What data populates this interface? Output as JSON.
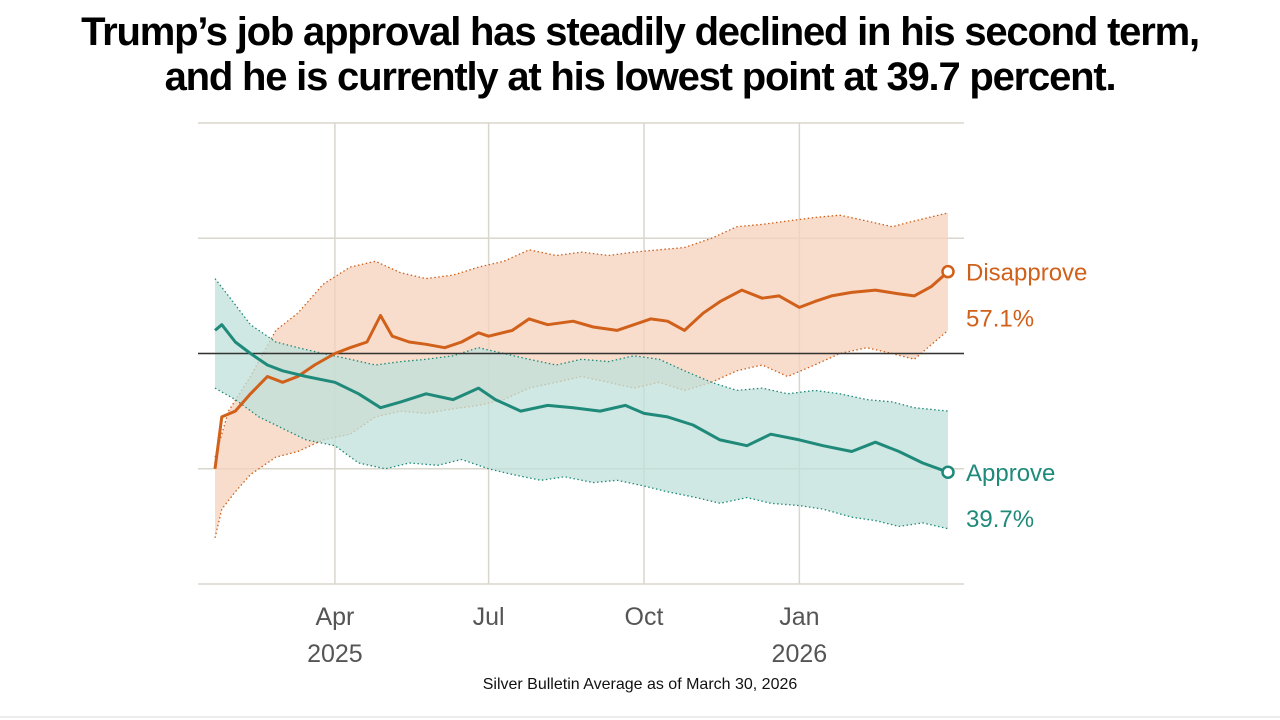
{
  "headline": {
    "line1": "Trump’s job approval has steadily declined in his second term,",
    "line2": "and he is currently at his lowest point at 39.7 percent."
  },
  "source": "Silver Bulletin Average as of March 30, 2026",
  "colors": {
    "disapprove": "#d0601a",
    "disapprove_band": "#f6d2bc",
    "approve": "#1f8a7a",
    "approve_band": "#bfe0d9",
    "grid": "#d9d6cc",
    "reference": "#333333"
  },
  "chart_data": {
    "type": "line",
    "x_axis": {
      "type": "date",
      "range": [
        "2025-01-20",
        "2026-03-30"
      ],
      "ticks": [
        {
          "date": "2025-04-01",
          "line1": "Apr",
          "line2": "2025"
        },
        {
          "date": "2025-07-01",
          "line1": "Jul",
          "line2": ""
        },
        {
          "date": "2025-10-01",
          "line1": "Oct",
          "line2": ""
        },
        {
          "date": "2026-01-01",
          "line1": "Jan",
          "line2": "2026"
        }
      ]
    },
    "y_axis": {
      "range": [
        30,
        70
      ],
      "gridlines": [
        30,
        40,
        50,
        60,
        70
      ],
      "reference_line": 50,
      "tick_labels_shown": false
    },
    "grid": true,
    "series": [
      {
        "name": "Disapprove",
        "end_label": "57.1%",
        "band_style": "dotted",
        "points": [
          [
            "2025-01-20",
            40.0
          ],
          [
            "2025-01-24",
            44.5
          ],
          [
            "2025-02-01",
            45.0
          ],
          [
            "2025-02-10",
            46.5
          ],
          [
            "2025-02-20",
            48.0
          ],
          [
            "2025-03-01",
            47.5
          ],
          [
            "2025-03-10",
            48.0
          ],
          [
            "2025-03-20",
            49.0
          ],
          [
            "2025-04-01",
            50.0
          ],
          [
            "2025-04-10",
            50.5
          ],
          [
            "2025-04-20",
            51.0
          ],
          [
            "2025-04-28",
            53.3
          ],
          [
            "2025-05-05",
            51.5
          ],
          [
            "2025-05-15",
            51.0
          ],
          [
            "2025-05-25",
            50.8
          ],
          [
            "2025-06-05",
            50.5
          ],
          [
            "2025-06-15",
            51.0
          ],
          [
            "2025-06-25",
            51.8
          ],
          [
            "2025-07-01",
            51.5
          ],
          [
            "2025-07-15",
            52.0
          ],
          [
            "2025-07-25",
            53.0
          ],
          [
            "2025-08-05",
            52.5
          ],
          [
            "2025-08-20",
            52.8
          ],
          [
            "2025-09-01",
            52.3
          ],
          [
            "2025-09-15",
            52.0
          ],
          [
            "2025-09-25",
            52.5
          ],
          [
            "2025-10-05",
            53.0
          ],
          [
            "2025-10-15",
            52.8
          ],
          [
            "2025-10-25",
            52.0
          ],
          [
            "2025-11-05",
            53.5
          ],
          [
            "2025-11-15",
            54.5
          ],
          [
            "2025-11-28",
            55.5
          ],
          [
            "2025-12-10",
            54.8
          ],
          [
            "2025-12-20",
            55.0
          ],
          [
            "2026-01-01",
            54.0
          ],
          [
            "2026-01-10",
            54.5
          ],
          [
            "2026-01-20",
            55.0
          ],
          [
            "2026-02-01",
            55.3
          ],
          [
            "2026-02-15",
            55.5
          ],
          [
            "2026-02-28",
            55.2
          ],
          [
            "2026-03-10",
            55.0
          ],
          [
            "2026-03-20",
            55.8
          ],
          [
            "2026-03-30",
            57.1
          ]
        ],
        "upper": [
          [
            "2025-01-20",
            41.0
          ],
          [
            "2025-01-28",
            45.0
          ],
          [
            "2025-02-10",
            48.0
          ],
          [
            "2025-02-25",
            52.0
          ],
          [
            "2025-03-10",
            53.5
          ],
          [
            "2025-03-25",
            56.0
          ],
          [
            "2025-04-10",
            57.5
          ],
          [
            "2025-04-25",
            58.0
          ],
          [
            "2025-05-10",
            57.0
          ],
          [
            "2025-05-25",
            56.5
          ],
          [
            "2025-06-10",
            56.8
          ],
          [
            "2025-06-25",
            57.5
          ],
          [
            "2025-07-10",
            58.0
          ],
          [
            "2025-07-25",
            59.0
          ],
          [
            "2025-08-10",
            58.5
          ],
          [
            "2025-08-25",
            58.8
          ],
          [
            "2025-09-10",
            58.5
          ],
          [
            "2025-09-25",
            58.8
          ],
          [
            "2025-10-10",
            59.0
          ],
          [
            "2025-10-25",
            59.2
          ],
          [
            "2025-11-10",
            60.0
          ],
          [
            "2025-11-25",
            61.0
          ],
          [
            "2025-12-10",
            61.2
          ],
          [
            "2025-12-25",
            61.5
          ],
          [
            "2026-01-10",
            61.8
          ],
          [
            "2026-01-25",
            62.0
          ],
          [
            "2026-02-10",
            61.5
          ],
          [
            "2026-02-25",
            61.0
          ],
          [
            "2026-03-10",
            61.5
          ],
          [
            "2026-03-30",
            62.2
          ]
        ],
        "lower": [
          [
            "2025-01-20",
            34.0
          ],
          [
            "2025-01-24",
            36.5
          ],
          [
            "2025-02-01",
            38.0
          ],
          [
            "2025-02-10",
            39.5
          ],
          [
            "2025-02-25",
            41.0
          ],
          [
            "2025-03-10",
            41.5
          ],
          [
            "2025-03-25",
            42.5
          ],
          [
            "2025-04-10",
            43.0
          ],
          [
            "2025-04-25",
            44.5
          ],
          [
            "2025-05-10",
            45.0
          ],
          [
            "2025-05-25",
            44.8
          ],
          [
            "2025-06-10",
            45.2
          ],
          [
            "2025-06-25",
            45.5
          ],
          [
            "2025-07-10",
            46.0
          ],
          [
            "2025-07-25",
            47.0
          ],
          [
            "2025-08-10",
            47.5
          ],
          [
            "2025-08-25",
            48.0
          ],
          [
            "2025-09-10",
            47.5
          ],
          [
            "2025-09-25",
            47.0
          ],
          [
            "2025-10-10",
            47.5
          ],
          [
            "2025-10-25",
            46.8
          ],
          [
            "2025-11-10",
            47.5
          ],
          [
            "2025-11-25",
            48.5
          ],
          [
            "2025-12-10",
            49.0
          ],
          [
            "2025-12-25",
            48.0
          ],
          [
            "2026-01-10",
            49.0
          ],
          [
            "2026-01-25",
            50.0
          ],
          [
            "2026-02-10",
            50.5
          ],
          [
            "2026-02-25",
            50.0
          ],
          [
            "2026-03-10",
            49.5
          ],
          [
            "2026-03-30",
            52.0
          ]
        ]
      },
      {
        "name": "Approve",
        "end_label": "39.7%",
        "band_style": "dotted",
        "points": [
          [
            "2025-01-20",
            52.0
          ],
          [
            "2025-01-24",
            52.5
          ],
          [
            "2025-02-01",
            51.0
          ],
          [
            "2025-02-10",
            50.0
          ],
          [
            "2025-02-20",
            49.0
          ],
          [
            "2025-03-01",
            48.5
          ],
          [
            "2025-03-15",
            48.0
          ],
          [
            "2025-04-01",
            47.5
          ],
          [
            "2025-04-15",
            46.5
          ],
          [
            "2025-04-28",
            45.3
          ],
          [
            "2025-05-10",
            45.8
          ],
          [
            "2025-05-25",
            46.5
          ],
          [
            "2025-06-10",
            46.0
          ],
          [
            "2025-06-25",
            47.0
          ],
          [
            "2025-07-05",
            46.0
          ],
          [
            "2025-07-20",
            45.0
          ],
          [
            "2025-08-05",
            45.5
          ],
          [
            "2025-08-20",
            45.3
          ],
          [
            "2025-09-05",
            45.0
          ],
          [
            "2025-09-20",
            45.5
          ],
          [
            "2025-10-01",
            44.8
          ],
          [
            "2025-10-15",
            44.5
          ],
          [
            "2025-10-30",
            43.8
          ],
          [
            "2025-11-15",
            42.5
          ],
          [
            "2025-12-01",
            42.0
          ],
          [
            "2025-12-15",
            43.0
          ],
          [
            "2026-01-01",
            42.5
          ],
          [
            "2026-01-15",
            42.0
          ],
          [
            "2026-02-01",
            41.5
          ],
          [
            "2026-02-15",
            42.3
          ],
          [
            "2026-03-01",
            41.5
          ],
          [
            "2026-03-15",
            40.5
          ],
          [
            "2026-03-30",
            39.7
          ]
        ],
        "upper": [
          [
            "2025-01-20",
            56.5
          ],
          [
            "2025-01-28",
            55.0
          ],
          [
            "2025-02-10",
            52.5
          ],
          [
            "2025-02-25",
            51.0
          ],
          [
            "2025-03-10",
            50.5
          ],
          [
            "2025-03-25",
            50.0
          ],
          [
            "2025-04-10",
            49.5
          ],
          [
            "2025-04-25",
            49.0
          ],
          [
            "2025-05-10",
            49.3
          ],
          [
            "2025-05-25",
            49.5
          ],
          [
            "2025-06-10",
            49.8
          ],
          [
            "2025-06-25",
            50.5
          ],
          [
            "2025-07-10",
            50.0
          ],
          [
            "2025-07-25",
            49.5
          ],
          [
            "2025-08-10",
            49.0
          ],
          [
            "2025-08-25",
            49.5
          ],
          [
            "2025-09-10",
            49.3
          ],
          [
            "2025-09-25",
            49.8
          ],
          [
            "2025-10-10",
            49.5
          ],
          [
            "2025-10-25",
            48.5
          ],
          [
            "2025-11-10",
            47.5
          ],
          [
            "2025-11-25",
            46.8
          ],
          [
            "2025-12-10",
            47.0
          ],
          [
            "2025-12-25",
            46.5
          ],
          [
            "2026-01-10",
            46.8
          ],
          [
            "2026-01-25",
            46.5
          ],
          [
            "2026-02-10",
            46.0
          ],
          [
            "2026-02-25",
            45.8
          ],
          [
            "2026-03-10",
            45.3
          ],
          [
            "2026-03-30",
            45.0
          ]
        ],
        "lower": [
          [
            "2025-01-20",
            47.0
          ],
          [
            "2025-02-01",
            46.0
          ],
          [
            "2025-02-15",
            44.5
          ],
          [
            "2025-03-01",
            43.5
          ],
          [
            "2025-03-15",
            42.5
          ],
          [
            "2025-04-01",
            42.0
          ],
          [
            "2025-04-15",
            40.5
          ],
          [
            "2025-05-01",
            40.0
          ],
          [
            "2025-05-15",
            40.5
          ],
          [
            "2025-06-01",
            40.3
          ],
          [
            "2025-06-15",
            40.8
          ],
          [
            "2025-07-01",
            40.0
          ],
          [
            "2025-07-15",
            39.5
          ],
          [
            "2025-08-01",
            39.0
          ],
          [
            "2025-08-15",
            39.3
          ],
          [
            "2025-09-01",
            38.8
          ],
          [
            "2025-09-15",
            39.0
          ],
          [
            "2025-10-01",
            38.5
          ],
          [
            "2025-10-15",
            38.0
          ],
          [
            "2025-11-01",
            37.5
          ],
          [
            "2025-11-15",
            37.0
          ],
          [
            "2025-12-01",
            37.5
          ],
          [
            "2025-12-15",
            37.0
          ],
          [
            "2026-01-01",
            36.8
          ],
          [
            "2026-01-15",
            36.5
          ],
          [
            "2026-02-01",
            35.8
          ],
          [
            "2026-02-15",
            35.5
          ],
          [
            "2026-03-01",
            35.0
          ],
          [
            "2026-03-15",
            35.3
          ],
          [
            "2026-03-30",
            34.8
          ]
        ]
      }
    ]
  }
}
